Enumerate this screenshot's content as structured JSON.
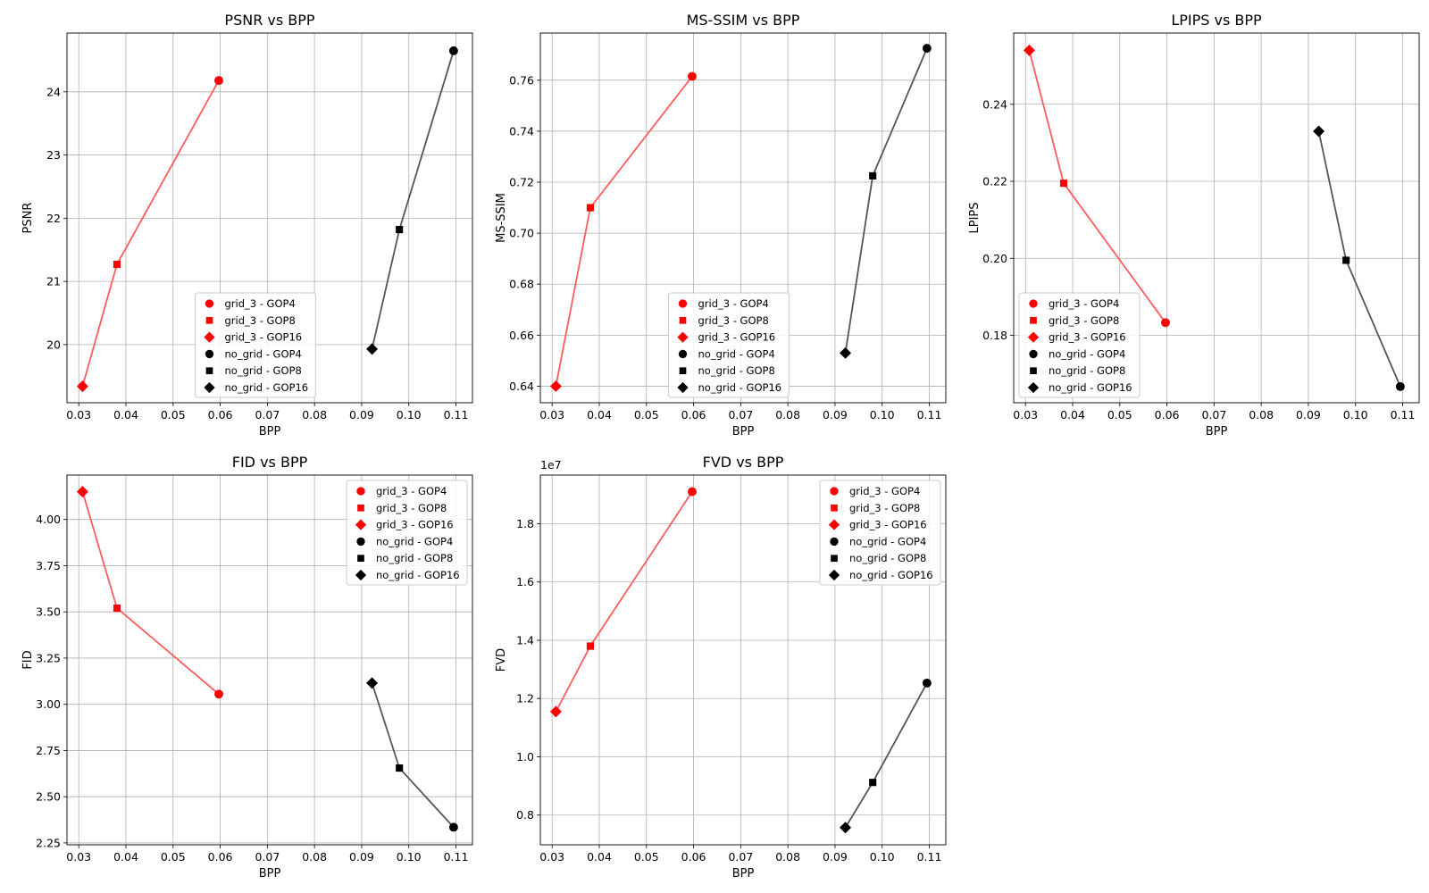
{
  "legend_entries": [
    {
      "label": "grid_3 - GOP4",
      "color": "#ff0000",
      "marker": "circle"
    },
    {
      "label": "grid_3 - GOP8",
      "color": "#ff0000",
      "marker": "square"
    },
    {
      "label": "grid_3 - GOP16",
      "color": "#ff0000",
      "marker": "diamond"
    },
    {
      "label": "no_grid - GOP4",
      "color": "#000000",
      "marker": "circle"
    },
    {
      "label": "no_grid - GOP8",
      "color": "#000000",
      "marker": "square"
    },
    {
      "label": "no_grid - GOP16",
      "color": "#000000",
      "marker": "diamond"
    }
  ],
  "line_colors": {
    "grid_3": "#ff5c5c",
    "no_grid": "#555555"
  },
  "chart_data": [
    {
      "type": "line",
      "title": "PSNR vs BPP",
      "xlabel": "BPP",
      "ylabel": "PSNR",
      "xlim": [
        0.0275,
        0.1135
      ],
      "ylim": [
        19.08,
        24.93
      ],
      "xticks": [
        "0.03",
        "0.04",
        "0.05",
        "0.06",
        "0.07",
        "0.08",
        "0.09",
        "0.10",
        "0.11"
      ],
      "yticks": [
        "20",
        "21",
        "22",
        "23",
        "24"
      ],
      "offset_label": "",
      "grid": true,
      "legend_placement": "lower-center",
      "series": [
        {
          "name": "grid_3",
          "points": [
            [
              0.0308,
              19.34,
              "diamond"
            ],
            [
              0.0381,
              21.27,
              "square"
            ],
            [
              0.0597,
              24.18,
              "circle"
            ]
          ]
        },
        {
          "name": "no_grid",
          "points": [
            [
              0.0922,
              19.93,
              "diamond"
            ],
            [
              0.098,
              21.82,
              "square"
            ],
            [
              0.1095,
              24.65,
              "circle"
            ]
          ]
        }
      ]
    },
    {
      "type": "line",
      "title": "MS-SSIM vs BPP",
      "xlabel": "BPP",
      "ylabel": "MS-SSIM",
      "xlim": [
        0.0275,
        0.1135
      ],
      "ylim": [
        0.6335,
        0.7785
      ],
      "xticks": [
        "0.03",
        "0.04",
        "0.05",
        "0.06",
        "0.07",
        "0.08",
        "0.09",
        "0.10",
        "0.11"
      ],
      "yticks": [
        "0.64",
        "0.66",
        "0.68",
        "0.70",
        "0.72",
        "0.74",
        "0.76"
      ],
      "offset_label": "",
      "grid": true,
      "legend_placement": "lower-center",
      "series": [
        {
          "name": "grid_3",
          "points": [
            [
              0.0308,
              0.64,
              "diamond"
            ],
            [
              0.0381,
              0.71,
              "square"
            ],
            [
              0.0597,
              0.7615,
              "circle"
            ]
          ]
        },
        {
          "name": "no_grid",
          "points": [
            [
              0.0922,
              0.653,
              "diamond"
            ],
            [
              0.098,
              0.7225,
              "square"
            ],
            [
              0.1095,
              0.7725,
              "circle"
            ]
          ]
        }
      ]
    },
    {
      "type": "line",
      "title": "LPIPS vs BPP",
      "xlabel": "BPP",
      "ylabel": "LPIPS",
      "xlim": [
        0.0275,
        0.1135
      ],
      "ylim": [
        0.1625,
        0.2585
      ],
      "xticks": [
        "0.03",
        "0.04",
        "0.05",
        "0.06",
        "0.07",
        "0.08",
        "0.09",
        "0.10",
        "0.11"
      ],
      "yticks": [
        "0.18",
        "0.20",
        "0.22",
        "0.24"
      ],
      "offset_label": "",
      "grid": true,
      "legend_placement": "lower-left",
      "series": [
        {
          "name": "grid_3",
          "points": [
            [
              0.0308,
              0.254,
              "diamond"
            ],
            [
              0.0381,
              0.2195,
              "square"
            ],
            [
              0.0597,
              0.1833,
              "circle"
            ]
          ]
        },
        {
          "name": "no_grid",
          "points": [
            [
              0.0922,
              0.233,
              "diamond"
            ],
            [
              0.098,
              0.1995,
              "square"
            ],
            [
              0.1095,
              0.1667,
              "circle"
            ]
          ]
        }
      ]
    },
    {
      "type": "line",
      "title": "FID vs BPP",
      "xlabel": "BPP",
      "ylabel": "FID",
      "xlim": [
        0.0275,
        0.1135
      ],
      "ylim": [
        2.24,
        4.24
      ],
      "xticks": [
        "0.03",
        "0.04",
        "0.05",
        "0.06",
        "0.07",
        "0.08",
        "0.09",
        "0.10",
        "0.11"
      ],
      "yticks": [
        "2.25",
        "2.50",
        "2.75",
        "3.00",
        "3.25",
        "3.50",
        "3.75",
        "4.00"
      ],
      "offset_label": "",
      "grid": true,
      "legend_placement": "upper-right",
      "series": [
        {
          "name": "grid_3",
          "points": [
            [
              0.0308,
              4.15,
              "diamond"
            ],
            [
              0.0381,
              3.52,
              "square"
            ],
            [
              0.0597,
              3.055,
              "circle"
            ]
          ]
        },
        {
          "name": "no_grid",
          "points": [
            [
              0.0922,
              3.115,
              "diamond"
            ],
            [
              0.098,
              2.655,
              "square"
            ],
            [
              0.1095,
              2.335,
              "circle"
            ]
          ]
        }
      ]
    },
    {
      "type": "line",
      "title": "FVD vs BPP",
      "xlabel": "BPP",
      "ylabel": "FVD",
      "xlim": [
        0.0275,
        0.1135
      ],
      "ylim": [
        6.98,
        19.67
      ],
      "xticks": [
        "0.03",
        "0.04",
        "0.05",
        "0.06",
        "0.07",
        "0.08",
        "0.09",
        "0.10",
        "0.11"
      ],
      "yticks": [
        "0.8",
        "1.0",
        "1.2",
        "1.4",
        "1.6",
        "1.8"
      ],
      "ytick_values": [
        8,
        10,
        12,
        14,
        16,
        18
      ],
      "offset_label": "1e7",
      "grid": true,
      "legend_placement": "upper-right",
      "series": [
        {
          "name": "grid_3",
          "points": [
            [
              0.0308,
              11.55,
              "diamond"
            ],
            [
              0.0381,
              13.8,
              "square"
            ],
            [
              0.0597,
              19.1,
              "circle"
            ]
          ]
        },
        {
          "name": "no_grid",
          "points": [
            [
              0.0922,
              7.57,
              "diamond"
            ],
            [
              0.098,
              9.12,
              "square"
            ],
            [
              0.1095,
              12.53,
              "circle"
            ]
          ]
        }
      ]
    }
  ]
}
